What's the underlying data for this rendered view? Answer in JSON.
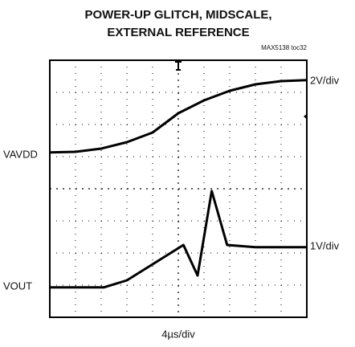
{
  "chart_data": {
    "type": "line",
    "title": [
      "POWER-UP GLITCH, MIDSCALE,",
      "EXTERNAL REFERENCE"
    ],
    "note": "MAX5138 toc32",
    "xlabel": "4µs/div",
    "xlim": [
      0,
      10
    ],
    "ylim": [
      0,
      8
    ],
    "grid": true,
    "series": [
      {
        "name": "VAVDD",
        "scale": "2V/div",
        "color": "#000000",
        "x": [
          0,
          1,
          2,
          3,
          4,
          5,
          6,
          7,
          8,
          9,
          10
        ],
        "values": [
          5.13,
          5.15,
          5.25,
          5.45,
          5.75,
          6.35,
          6.75,
          7.05,
          7.25,
          7.35,
          7.38
        ]
      },
      {
        "name": "VOUT",
        "scale": "1V/div",
        "color": "#000000",
        "x": [
          0,
          2.1,
          3,
          4,
          5.2,
          5.75,
          6.3,
          6.9,
          8,
          10
        ],
        "values": [
          0.93,
          0.93,
          1.15,
          1.65,
          2.25,
          1.3,
          3.93,
          2.25,
          2.18,
          2.18
        ]
      }
    ]
  }
}
